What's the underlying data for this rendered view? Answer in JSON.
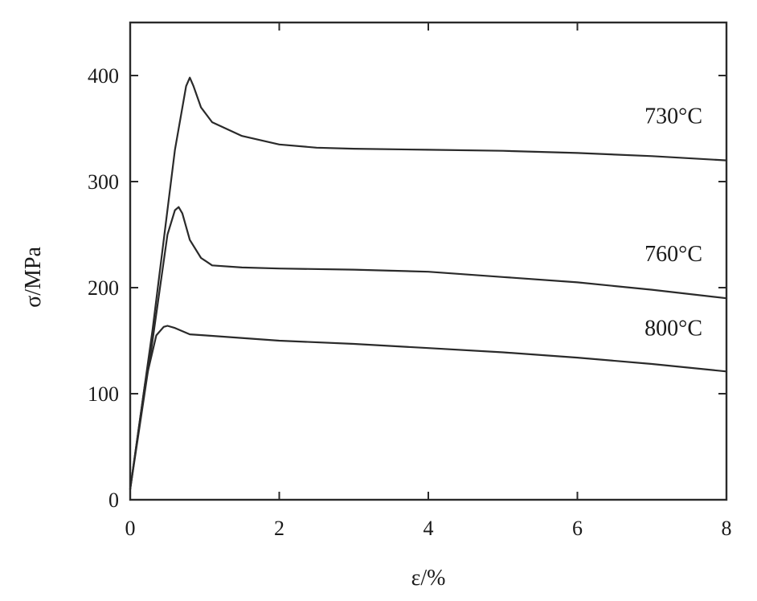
{
  "chart_data": {
    "type": "line",
    "title": "",
    "xlabel": "ε/%",
    "ylabel": "σ/MPa",
    "xlim": [
      0,
      8
    ],
    "ylim": [
      0,
      450
    ],
    "xticks": [
      0,
      2,
      4,
      6,
      8
    ],
    "yticks": [
      0,
      100,
      200,
      300,
      400
    ],
    "xtick_labels": [
      "0",
      "2",
      "4",
      "6",
      "8"
    ],
    "ytick_labels": [
      "0",
      "100",
      "200",
      "300",
      "400"
    ],
    "grid": false,
    "legend": "inline labels at right",
    "series": [
      {
        "name": "730°C",
        "x": [
          0,
          0.3,
          0.6,
          0.75,
          0.8,
          0.85,
          0.95,
          1.1,
          1.5,
          2.0,
          2.5,
          3.0,
          4.0,
          5.0,
          6.0,
          7.0,
          8.0
        ],
        "y": [
          10,
          160,
          330,
          390,
          398,
          390,
          370,
          356,
          343,
          335,
          332,
          331,
          330,
          329,
          327,
          324,
          320
        ]
      },
      {
        "name": "760°C",
        "x": [
          0,
          0.3,
          0.5,
          0.6,
          0.65,
          0.7,
          0.8,
          0.95,
          1.1,
          1.5,
          2.0,
          3.0,
          4.0,
          5.0,
          6.0,
          7.0,
          8.0
        ],
        "y": [
          10,
          150,
          250,
          273,
          276,
          270,
          245,
          228,
          221,
          219,
          218,
          217,
          215,
          210,
          205,
          198,
          190
        ]
      },
      {
        "name": "800°C",
        "x": [
          0,
          0.2,
          0.35,
          0.45,
          0.5,
          0.6,
          0.8,
          1.0,
          2.0,
          3.0,
          4.0,
          5.0,
          6.0,
          7.0,
          8.0
        ],
        "y": [
          10,
          110,
          155,
          163,
          164,
          162,
          156,
          155,
          150,
          147,
          143,
          139,
          134,
          128,
          121
        ]
      }
    ]
  }
}
